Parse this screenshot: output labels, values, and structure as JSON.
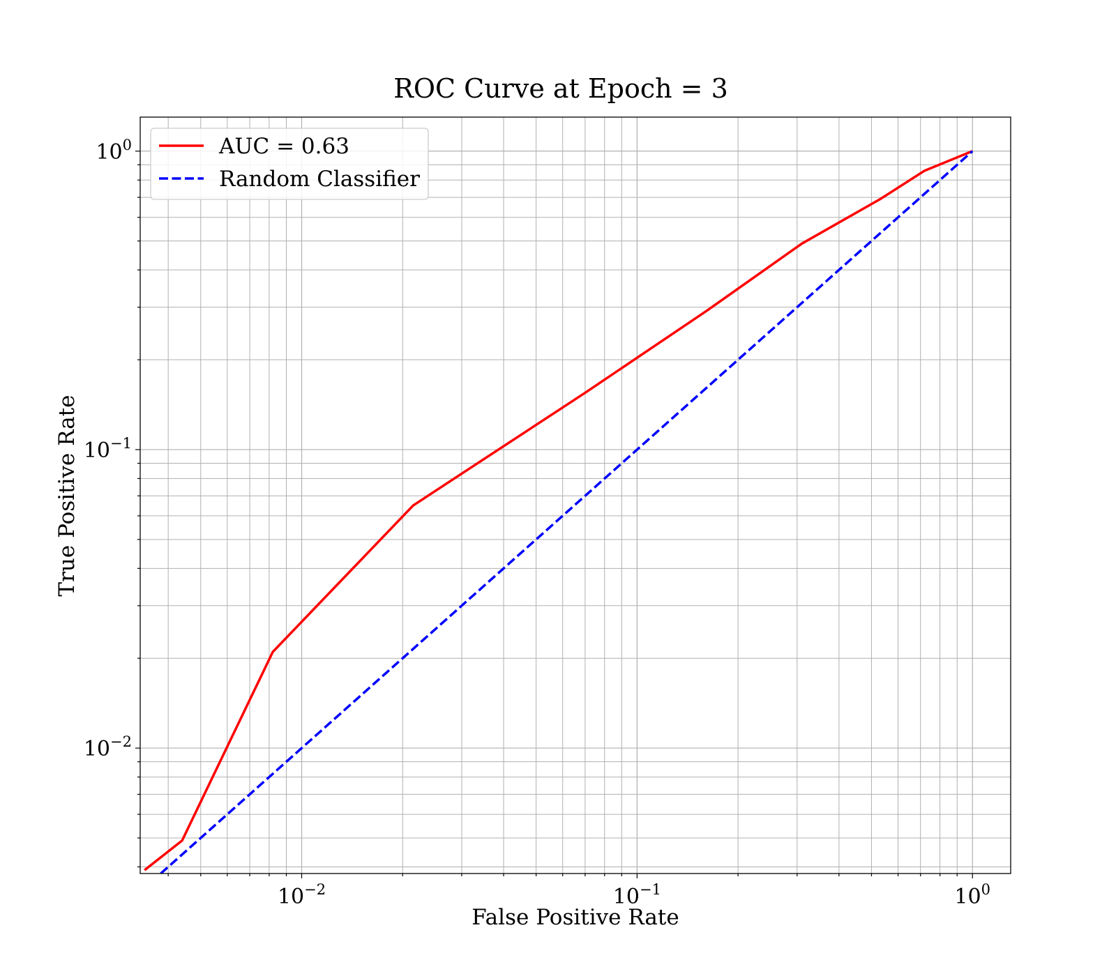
{
  "chart_data": {
    "type": "line",
    "title": "ROC Curve at Epoch = 3",
    "xlabel": "False Positive Rate",
    "ylabel": "True Positive Rate",
    "xscale": "log",
    "yscale": "log",
    "xlim": [
      0.0033,
      1.3
    ],
    "ylim": [
      0.0038,
      1.3
    ],
    "grid": "both (major and minor)",
    "legend_location": "upper-left",
    "x_ticks": [
      {
        "value": 0.01,
        "base": "10",
        "exp": "−2"
      },
      {
        "value": 0.1,
        "base": "10",
        "exp": "−1"
      },
      {
        "value": 1,
        "base": "10",
        "exp": "0"
      }
    ],
    "y_ticks": [
      {
        "value": 0.01,
        "base": "10",
        "exp": "−2"
      },
      {
        "value": 0.1,
        "base": "10",
        "exp": "−1"
      },
      {
        "value": 1,
        "base": "10",
        "exp": "0"
      }
    ],
    "series": [
      {
        "name": "AUC = 0.63",
        "color": "#ff0000",
        "style": "solid",
        "x": [
          0.0034,
          0.0044,
          0.0082,
          0.0215,
          0.07,
          0.16,
          0.31,
          0.53,
          0.72,
          1.0
        ],
        "y": [
          0.0039,
          0.0049,
          0.021,
          0.065,
          0.155,
          0.29,
          0.49,
          0.69,
          0.86,
          1.0
        ]
      },
      {
        "name": "Random Classifier",
        "color": "#0000ff",
        "style": "dashed",
        "x": [
          0.0038,
          1.0
        ],
        "y": [
          0.0038,
          1.0
        ]
      }
    ]
  }
}
